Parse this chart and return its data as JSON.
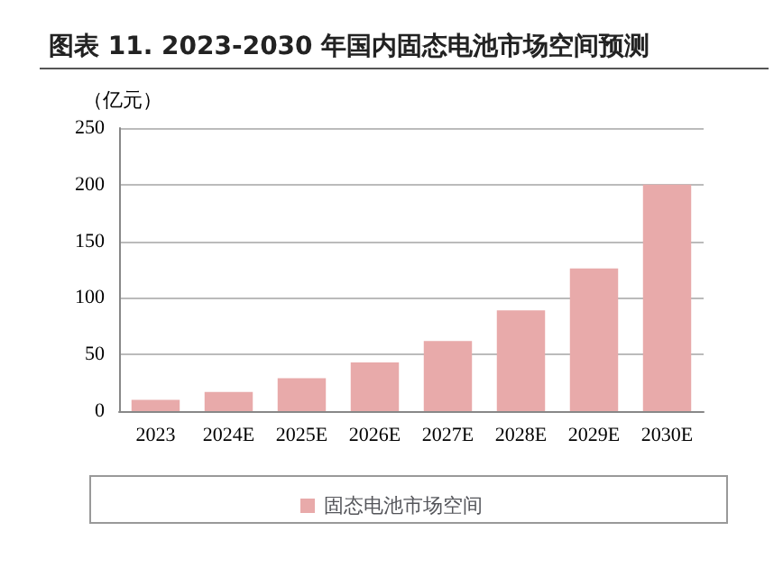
{
  "chart_data": {
    "type": "bar",
    "title": "图表 11. 2023-2030 年国内固态电池市场空间预测",
    "ylabel": "（亿元）",
    "categories": [
      "2023",
      "2024E",
      "2025E",
      "2026E",
      "2027E",
      "2028E",
      "2029E",
      "2030E"
    ],
    "series": [
      {
        "name": "固态电池市场空间",
        "color": "#e8aaaa",
        "values": [
          10,
          17,
          29,
          43,
          62,
          89,
          126,
          200
        ]
      }
    ],
    "ylim": [
      0,
      250
    ],
    "yticks": [
      0,
      50,
      100,
      150,
      200,
      250
    ],
    "grid": "y",
    "legend": "bottom"
  }
}
